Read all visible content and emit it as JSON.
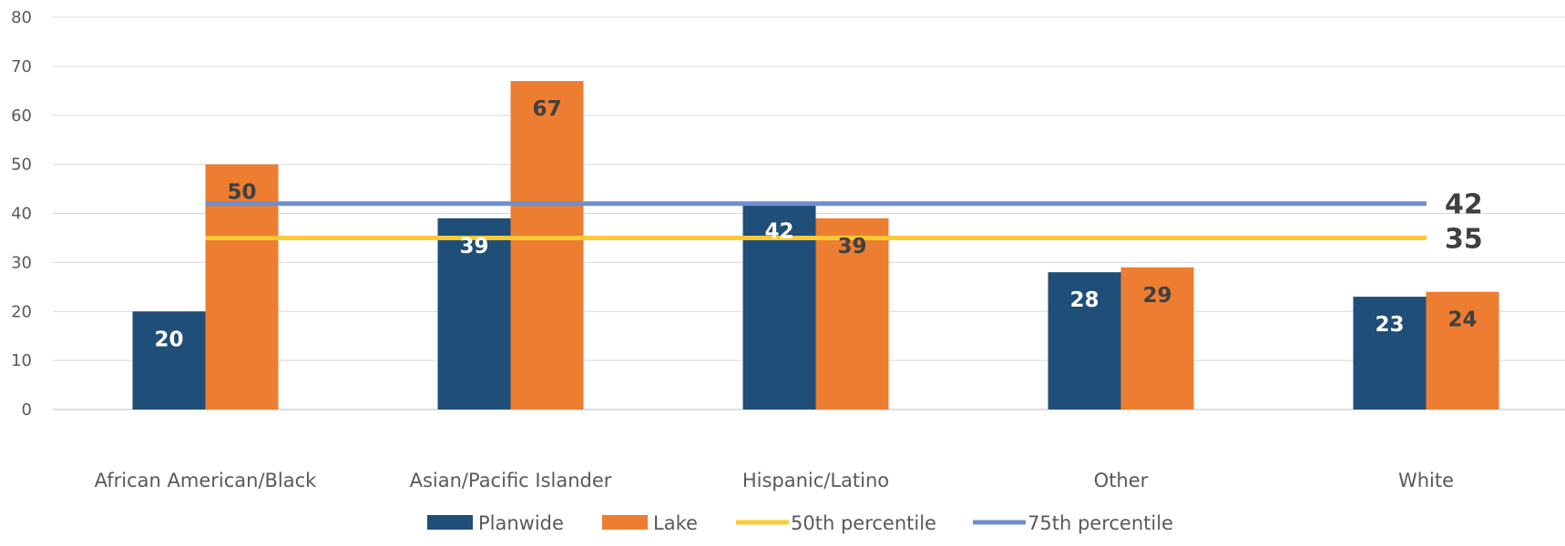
{
  "chart_data": {
    "type": "bar",
    "categories": [
      "African American/Black",
      "Asian/Pacific Islander",
      "Hispanic/Latino",
      "Other",
      "White"
    ],
    "series": [
      {
        "name": "Planwide",
        "values": [
          20,
          39,
          42,
          28,
          23
        ],
        "color": "#1F4E79",
        "label_color": "#ffffff"
      },
      {
        "name": "Lake",
        "values": [
          50,
          67,
          39,
          29,
          24
        ],
        "color": "#ED7D31",
        "label_color": "#404040"
      }
    ],
    "reference_lines": [
      {
        "name": "50th percentile",
        "value": 35,
        "label": "35",
        "color": "#FFC935"
      },
      {
        "name": "75th percentile",
        "value": 42,
        "label": "42",
        "color": "#6E8FCF"
      }
    ],
    "ylim": [
      0,
      80
    ],
    "yticks": [
      "0",
      "10",
      "20",
      "30",
      "40",
      "50",
      "60",
      "70",
      "80"
    ],
    "grid": true,
    "legend_position": "bottom",
    "title": "",
    "xlabel": "",
    "ylabel": ""
  }
}
